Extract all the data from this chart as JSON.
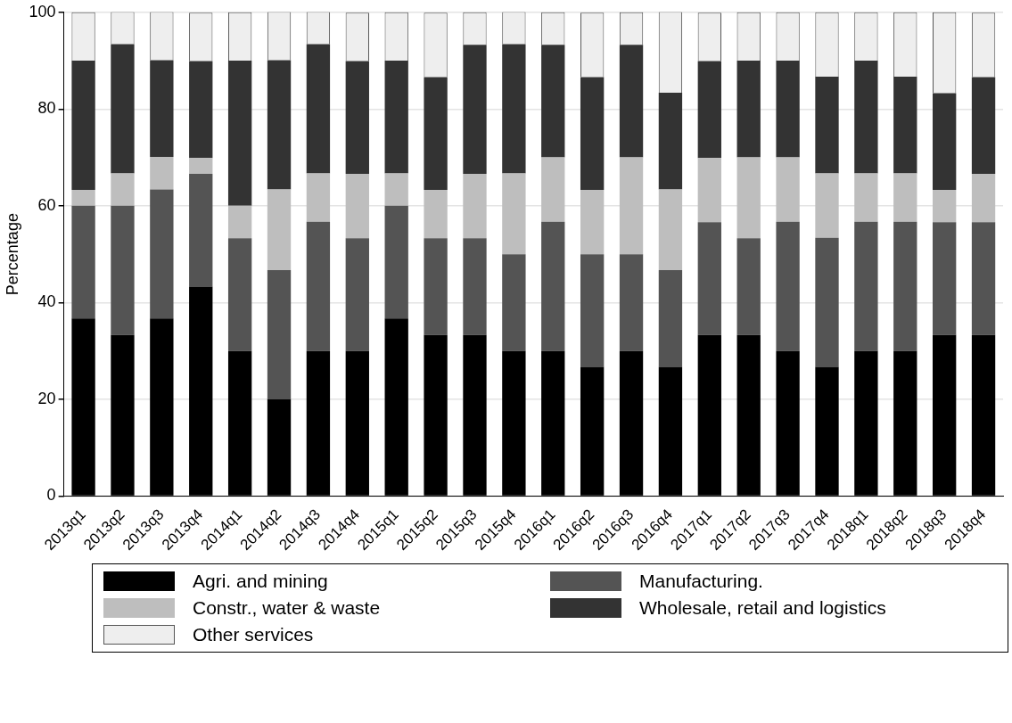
{
  "chart_data": {
    "type": "bar",
    "stacked": true,
    "ylabel": "Percentage",
    "legend": "bottom",
    "grid": "y",
    "categories": [
      "2013q1",
      "2013q2",
      "2013q3",
      "2013q4",
      "2014q1",
      "2014q2",
      "2014q3",
      "2014q4",
      "2015q1",
      "2015q2",
      "2015q3",
      "2015q4",
      "2016q1",
      "2016q2",
      "2016q3",
      "2016q4",
      "2017q1",
      "2017q2",
      "2017q3",
      "2017q4",
      "2018q1",
      "2018q2",
      "2018q3",
      "2018q4"
    ],
    "ylim": [
      0,
      100
    ],
    "yticks": [
      0,
      20,
      40,
      60,
      80,
      100
    ],
    "series": [
      {
        "name": "Agri. and mining",
        "color": "#000000",
        "values": [
          36.7,
          33.3,
          36.7,
          43.3,
          30,
          20,
          30,
          30,
          36.7,
          33.3,
          33.3,
          30,
          30,
          26.7,
          30,
          26.7,
          33.3,
          33.3,
          30,
          26.7,
          30,
          30,
          33.3,
          33.3
        ]
      },
      {
        "name": "Manufacturing.",
        "color": "#545454",
        "values": [
          23.3,
          26.7,
          26.7,
          23.3,
          23.3,
          26.7,
          26.7,
          23.3,
          23.3,
          20,
          20,
          20,
          26.7,
          23.3,
          20,
          20,
          23.3,
          20,
          26.7,
          26.7,
          26.7,
          26.7,
          23.3,
          23.3
        ]
      },
      {
        "name": "Constr., water & waste",
        "color": "#bebebe",
        "values": [
          3.3,
          6.7,
          6.7,
          3.3,
          6.7,
          16.7,
          10,
          13.3,
          6.7,
          10,
          13.3,
          16.7,
          13.3,
          13.3,
          20,
          16.7,
          13.3,
          16.7,
          13.3,
          13.3,
          10,
          10,
          6.7,
          10
        ]
      },
      {
        "name": "Wholesale, retail and logistics",
        "color": "#333333",
        "values": [
          26.7,
          26.7,
          20,
          20,
          30,
          26.7,
          26.7,
          23.3,
          23.3,
          23.3,
          26.7,
          26.7,
          23.3,
          23.3,
          23.3,
          20,
          20,
          20,
          20,
          20,
          23.3,
          20,
          20,
          20
        ]
      },
      {
        "name": "Other services",
        "color": "#eeeeee",
        "values": [
          10,
          6.7,
          10,
          10,
          10,
          10,
          6.7,
          10,
          10,
          13.3,
          6.7,
          6.7,
          6.7,
          13.3,
          6.7,
          16.7,
          10,
          10,
          10,
          13.3,
          10,
          13.3,
          16.7,
          13.3
        ]
      }
    ]
  }
}
